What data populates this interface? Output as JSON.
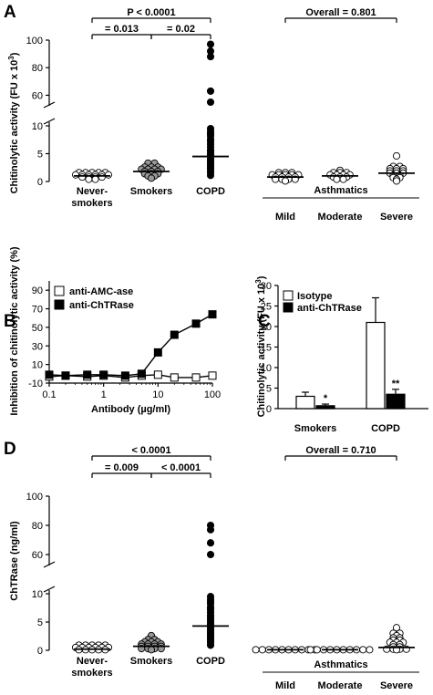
{
  "chart_data": [
    {
      "panel": "A",
      "type": "scatter",
      "ylabel": "Chitinolytic activity (FU x 10³)",
      "broken_axis": true,
      "y_lower_range": [
        0,
        10
      ],
      "y_upper_range": [
        55,
        100
      ],
      "y_ticks_lower": [
        0,
        5,
        10
      ],
      "y_ticks_upper": [
        60,
        80,
        100
      ],
      "group_title": "Asthmatics",
      "groups": [
        {
          "name": "Never-smokers",
          "color": "#ffffff",
          "median": 1.0,
          "values": [
            1.6,
            1.6,
            1.6,
            1.6,
            1.6,
            1.2,
            1.2,
            1.2,
            1.2,
            1.2,
            1.2,
            0.8,
            0.8,
            0.8,
            0.8,
            0.4,
            0.4
          ]
        },
        {
          "name": "Smokers",
          "color": "#999999",
          "median": 1.8,
          "values": [
            3.3,
            3.3,
            2.6,
            2.6,
            2.6,
            2.2,
            2.2,
            2.2,
            2.2,
            1.8,
            1.8,
            1.8,
            1.4,
            1.4,
            1.4,
            1.0,
            1.0,
            0.6
          ]
        },
        {
          "name": "COPD",
          "color": "#000000",
          "median": 4.5,
          "values": [
            97,
            92,
            88,
            63,
            55,
            9.5,
            9,
            8.6,
            8.2,
            7.6,
            7.2,
            6.7,
            6.2,
            5.7,
            5.4,
            5,
            4.7,
            4.4,
            4,
            3.6,
            3.2,
            2.8,
            2.4,
            2,
            1.6,
            1.1
          ]
        },
        {
          "name": "Mild",
          "color": "#ffffff",
          "median": 0.8,
          "values": [
            1.6,
            1.6,
            1.6,
            1.2,
            1.2,
            1.2,
            1.2,
            1.2,
            0.8,
            0.8,
            0.8,
            0.8,
            0.4,
            0.4,
            0.4,
            0.4,
            0.1
          ]
        },
        {
          "name": "Moderate",
          "color": "#ffffff",
          "median": 1.0,
          "values": [
            2.0,
            1.6,
            1.6,
            1.6,
            1.2,
            1.2,
            1.2,
            1.2,
            0.8,
            0.8,
            0.8,
            0.4,
            0.4
          ]
        },
        {
          "name": "Severe",
          "color": "#ffffff",
          "median": 1.5,
          "values": [
            4.6,
            2.7,
            2.7,
            2.3,
            2.3,
            2.3,
            1.9,
            1.9,
            1.9,
            1.5,
            1.5,
            1.5,
            1.1,
            1.1,
            0.7,
            0.7,
            0.4,
            0.1
          ]
        }
      ],
      "category_labels": [
        "Never-\nsmokers",
        "Smokers",
        "COPD",
        "Mild",
        "Moderate",
        "Severe"
      ],
      "annotations": [
        {
          "text": "P < 0.0001",
          "from": "Never-smokers",
          "to": "COPD"
        },
        {
          "text": "= 0.013",
          "from": "Never-smokers",
          "to": "Smokers"
        },
        {
          "text": "= 0.02",
          "from": "Smokers",
          "to": "COPD"
        },
        {
          "text": "Overall = 0.801",
          "from": "Mild",
          "to": "Severe"
        }
      ]
    },
    {
      "panel": "B",
      "type": "line",
      "xlabel": "Antibody (µg/ml)",
      "ylabel": "Inhibition of chitinolytic activity (%)",
      "xscale": "log",
      "xlim": [
        0.1,
        100
      ],
      "ylim": [
        -10,
        100
      ],
      "x_ticks": [
        "0.1",
        "1",
        "10",
        "100"
      ],
      "y_ticks": [
        -10,
        10,
        30,
        50,
        70,
        90
      ],
      "legend_position": "top-left",
      "series": [
        {
          "name": "anti-AMC-ase",
          "marker": "open-square",
          "x": [
            0.1,
            0.2,
            0.5,
            1,
            2.5,
            5,
            10,
            20,
            50,
            100
          ],
          "y": [
            -3,
            -2,
            -3,
            -2,
            -4,
            -2,
            -1,
            -4,
            -4,
            -2
          ]
        },
        {
          "name": "anti-ChTRase",
          "marker": "filled-square",
          "x": [
            0.1,
            0.2,
            0.5,
            1,
            2.5,
            5,
            10,
            20,
            50,
            100
          ],
          "y": [
            -1,
            -2,
            -1,
            -1,
            -2,
            0,
            23,
            42,
            54,
            64
          ]
        }
      ]
    },
    {
      "panel": "C",
      "type": "bar",
      "ylabel": "Chitinolytic activity (FU x 10³)",
      "ylim": [
        0,
        30
      ],
      "y_ticks": [
        0,
        5,
        10,
        15,
        20,
        25,
        30
      ],
      "categories": [
        "Smokers",
        "COPD"
      ],
      "legend_position": "top-left",
      "series": [
        {
          "name": "Isotype",
          "fill": "#ffffff",
          "values": [
            3.0,
            21.0
          ],
          "errors": [
            1.0,
            6.0
          ]
        },
        {
          "name": "anti-ChTRase",
          "fill": "#000000",
          "values": [
            0.7,
            3.5
          ],
          "errors": [
            0.4,
            1.2
          ]
        }
      ],
      "annotations": [
        {
          "text": "*",
          "category": "Smokers"
        },
        {
          "text": "**",
          "category": "COPD"
        }
      ]
    },
    {
      "panel": "D",
      "type": "scatter",
      "ylabel": "ChTRase (ng/ml)",
      "broken_axis": true,
      "y_lower_range": [
        0,
        10
      ],
      "y_upper_range": [
        55,
        100
      ],
      "y_ticks_lower": [
        0,
        5,
        10
      ],
      "y_ticks_upper": [
        60,
        80,
        100
      ],
      "group_title": "Asthmatics",
      "groups": [
        {
          "name": "Never-smokers",
          "color": "#ffffff",
          "median": 0.2,
          "values": [
            0.9,
            0.9,
            0.9,
            0.9,
            0.9,
            0.5,
            0.5,
            0.5,
            0.5,
            0.5,
            0.5,
            0.1,
            0.1,
            0.1,
            0.1,
            0.1
          ]
        },
        {
          "name": "Smokers",
          "color": "#999999",
          "median": 0.7,
          "values": [
            2.6,
            1.9,
            1.9,
            1.5,
            1.5,
            1.5,
            1.1,
            1.1,
            1.1,
            1.1,
            0.7,
            0.7,
            0.7,
            0.7,
            0.3,
            0.3,
            0.3,
            0.3,
            0.1
          ]
        },
        {
          "name": "COPD",
          "color": "#000000",
          "median": 4.3,
          "values": [
            80,
            77,
            68,
            60,
            9.5,
            9,
            8.6,
            8.2,
            7.6,
            7.2,
            6.7,
            6.2,
            5.8,
            5.4,
            5,
            4.6,
            4.2,
            3.8,
            3.4,
            3,
            2.6,
            2.2,
            1.8,
            1.4,
            0.9
          ]
        },
        {
          "name": "Mild",
          "color": "#ffffff",
          "median": 0.1,
          "values": [
            0.1,
            0.1,
            0.1,
            0.1,
            0.1,
            0.1,
            0.1,
            0.1,
            0.1,
            0.1
          ]
        },
        {
          "name": "Moderate",
          "color": "#ffffff",
          "median": 0.1,
          "values": [
            0.1,
            0.1,
            0.1,
            0.1,
            0.1,
            0.1,
            0.1,
            0.1,
            0.1,
            0.1
          ]
        },
        {
          "name": "Severe",
          "color": "#ffffff",
          "median": 0.5,
          "values": [
            4.0,
            3.0,
            3.0,
            2.6,
            2.2,
            2.2,
            1.8,
            1.8,
            1.4,
            1.4,
            1.4,
            1.0,
            1.0,
            0.6,
            0.6,
            0.2,
            0.2,
            0.2,
            0.2,
            0.1
          ]
        }
      ],
      "category_labels": [
        "Never-\nsmokers",
        "Smokers",
        "COPD",
        "Mild",
        "Moderate",
        "Severe"
      ],
      "annotations": [
        {
          "text": "< 0.0001",
          "from": "Never-smokers",
          "to": "COPD"
        },
        {
          "text": "= 0.009",
          "from": "Never-smokers",
          "to": "Smokers"
        },
        {
          "text": "< 0.0001",
          "from": "Smokers",
          "to": "COPD"
        },
        {
          "text": "Overall = 0.710",
          "from": "Mild",
          "to": "Severe"
        }
      ]
    }
  ]
}
